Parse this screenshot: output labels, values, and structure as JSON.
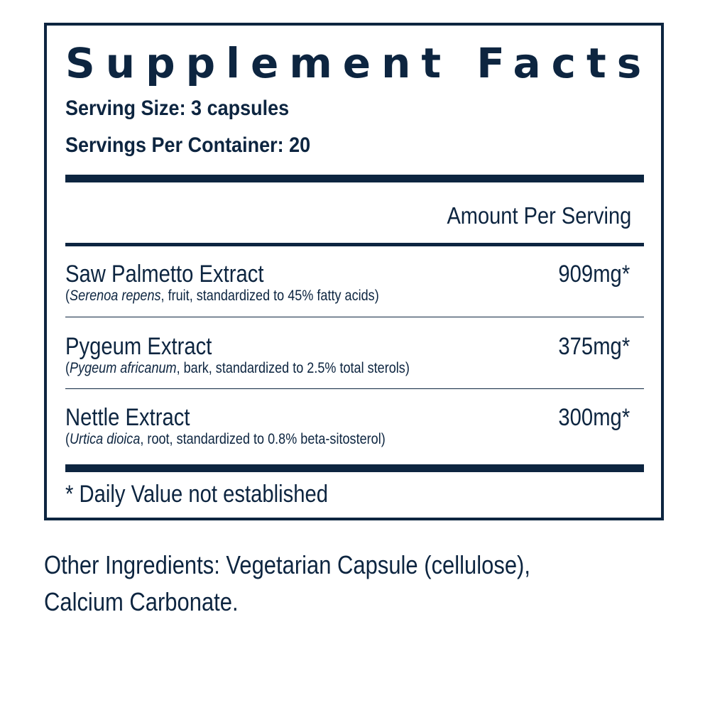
{
  "label": {
    "title": "Supplement Facts",
    "serving_size": "Serving Size: 3 capsules",
    "servings_per_container": "Servings Per Container: 20",
    "amount_header": "Amount Per Serving",
    "ingredients": [
      {
        "name": "Saw Palmetto Extract",
        "latin": "Serenoa repens",
        "detail_rest": ", fruit, standardized to 45% fatty acids)",
        "amount": "909mg*"
      },
      {
        "name": "Pygeum Extract",
        "latin": "Pygeum africanum",
        "detail_rest": ", bark, standardized to 2.5% total sterols)",
        "amount": "375mg*"
      },
      {
        "name": "Nettle Extract",
        "latin": "Urtica dioica",
        "detail_rest": ", root, standardized to 0.8% beta-sitosterol)",
        "amount": "300mg*"
      }
    ],
    "footnote": "* Daily Value not established"
  },
  "other_ingredients": {
    "line1": "Other Ingredients: Vegetarian Capsule (cellulose),",
    "line2": "Calcium Carbonate."
  },
  "colors": {
    "ink": "#0d2540",
    "background": "#ffffff"
  }
}
